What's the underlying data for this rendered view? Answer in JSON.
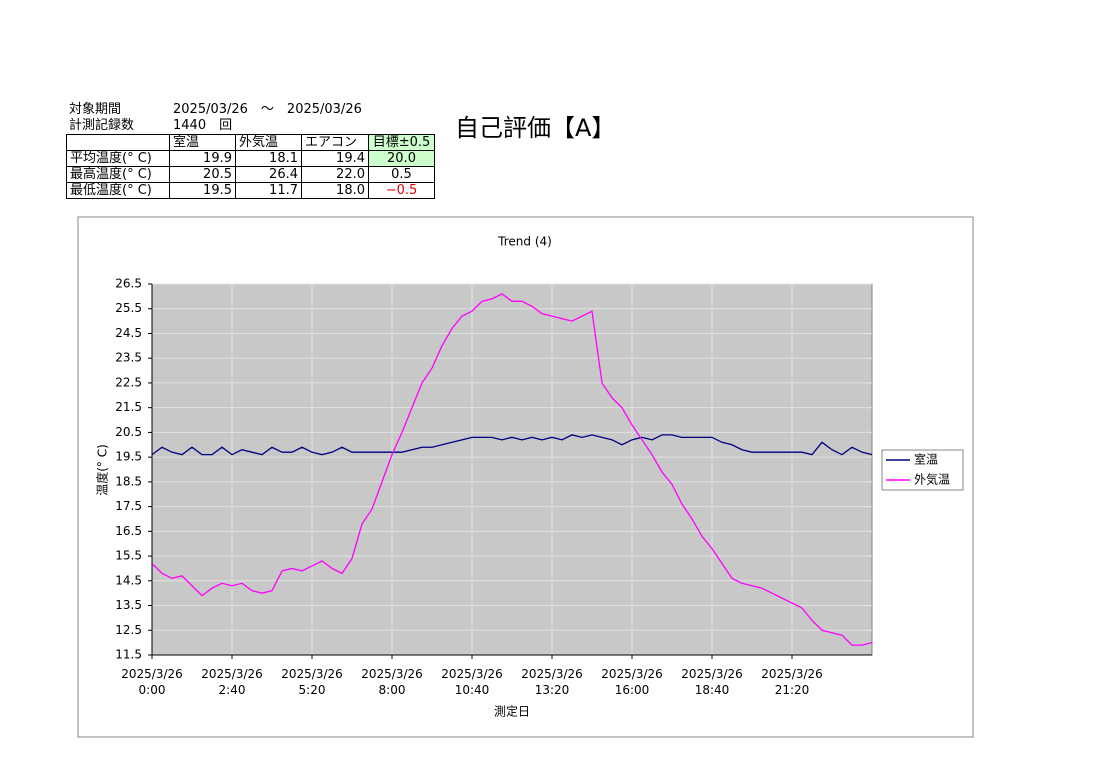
{
  "header": {
    "period_label": "対象期間",
    "period": "2025/03/26　～　2025/03/26",
    "count_label": "計測記録数",
    "count": "1440　回",
    "evaluation": "自己評価【A】"
  },
  "table": {
    "columns": [
      "",
      "室温",
      "外気温",
      "エアコン",
      "目標±0.5"
    ],
    "rows": [
      [
        "平均温度(° C)",
        "19.9",
        "18.1",
        "19.4",
        "20.0"
      ],
      [
        "最高温度(° C)",
        "20.5",
        "26.4",
        "22.0",
        "0.5"
      ],
      [
        "最低温度(° C)",
        "19.5",
        "11.7",
        "18.0",
        "−0.5"
      ]
    ]
  },
  "chart_data": {
    "type": "line",
    "title": "Trend (4)",
    "x_label": "測定日",
    "y_label": "温度(° C)",
    "x": [
      0,
      20,
      40,
      60,
      80,
      100,
      120,
      140,
      160,
      180,
      200,
      220,
      240,
      260,
      280,
      300,
      320,
      340,
      360,
      380,
      400,
      420,
      440,
      460,
      480,
      500,
      520,
      540,
      560,
      580,
      600,
      620,
      640,
      660,
      680,
      700,
      720,
      740,
      760,
      780,
      800,
      820,
      840,
      860,
      880,
      900,
      920,
      940,
      960,
      980,
      1000,
      1020,
      1040,
      1060,
      1080,
      1100,
      1120,
      1140,
      1160,
      1180,
      1200,
      1220,
      1240,
      1260,
      1280,
      1300,
      1320,
      1340,
      1360,
      1380,
      1400,
      1420,
      1440
    ],
    "series": [
      {
        "name": "室温",
        "color": "#000080",
        "values": [
          19.6,
          19.9,
          19.7,
          19.6,
          19.9,
          19.6,
          19.6,
          19.9,
          19.6,
          19.8,
          19.7,
          19.6,
          19.9,
          19.7,
          19.7,
          19.9,
          19.7,
          19.6,
          19.7,
          19.9,
          19.7,
          19.7,
          19.7,
          19.7,
          19.7,
          19.7,
          19.8,
          19.9,
          19.9,
          20.0,
          20.1,
          20.2,
          20.3,
          20.3,
          20.3,
          20.2,
          20.3,
          20.2,
          20.3,
          20.2,
          20.3,
          20.2,
          20.4,
          20.3,
          20.4,
          20.3,
          20.2,
          20.0,
          20.2,
          20.3,
          20.2,
          20.4,
          20.4,
          20.3,
          20.3,
          20.3,
          20.3,
          20.1,
          20.0,
          19.8,
          19.7,
          19.7,
          19.7,
          19.7,
          19.7,
          19.7,
          19.6,
          20.1,
          19.8,
          19.6,
          19.9,
          19.7,
          19.6
        ]
      },
      {
        "name": "外気温",
        "color": "#ff00ff",
        "values": [
          15.2,
          14.8,
          14.6,
          14.7,
          14.3,
          13.9,
          14.2,
          14.4,
          14.3,
          14.4,
          14.1,
          14.0,
          14.1,
          14.9,
          15.0,
          14.9,
          15.1,
          15.3,
          15.0,
          14.8,
          15.4,
          16.8,
          17.4,
          18.5,
          19.6,
          20.5,
          21.5,
          22.5,
          23.1,
          24.0,
          24.7,
          25.2,
          25.4,
          25.8,
          25.9,
          26.1,
          25.8,
          25.8,
          25.6,
          25.3,
          25.2,
          25.1,
          25.0,
          25.2,
          25.4,
          22.5,
          21.9,
          21.5,
          20.8,
          20.2,
          19.6,
          18.9,
          18.4,
          17.6,
          17.0,
          16.3,
          15.8,
          15.2,
          14.6,
          14.4,
          14.3,
          14.2,
          14.0,
          13.8,
          13.6,
          13.4,
          12.9,
          12.5,
          12.4,
          12.3,
          11.9,
          11.9,
          12.0
        ]
      }
    ],
    "xlim": [
      0,
      1440
    ],
    "xticks": [
      {
        "value": 0,
        "label": "2025/3/26\n0:00"
      },
      {
        "value": 160,
        "label": "2025/3/26\n2:40"
      },
      {
        "value": 320,
        "label": "2025/3/26\n5:20"
      },
      {
        "value": 480,
        "label": "2025/3/26\n8:00"
      },
      {
        "value": 640,
        "label": "2025/3/26\n10:40"
      },
      {
        "value": 800,
        "label": "2025/3/26\n13:20"
      },
      {
        "value": 960,
        "label": "2025/3/26\n16:00"
      },
      {
        "value": 1120,
        "label": "2025/3/26\n18:40"
      },
      {
        "value": 1280,
        "label": "2025/3/26\n21:20"
      }
    ],
    "ylim": [
      11.5,
      26.5
    ],
    "yticks": [
      11.5,
      12.5,
      13.5,
      14.5,
      15.5,
      16.5,
      17.5,
      18.5,
      19.5,
      20.5,
      21.5,
      22.5,
      23.5,
      24.5,
      25.5,
      26.5
    ],
    "grid": true,
    "legend": "right",
    "plot_background": "#c8c8c8"
  }
}
